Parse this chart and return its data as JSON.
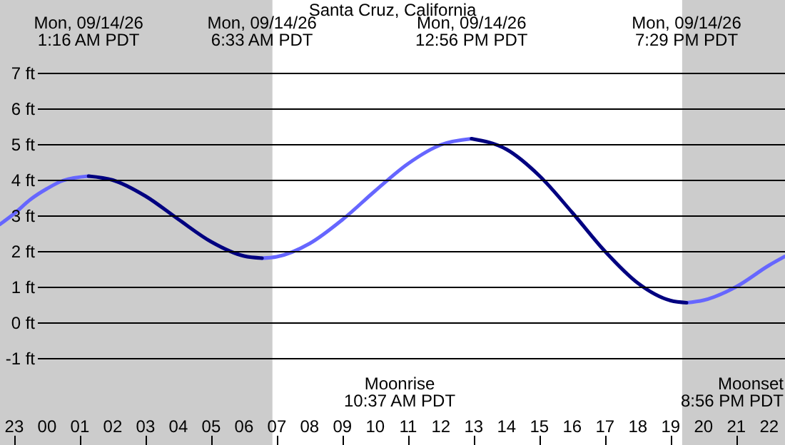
{
  "chart_data": {
    "type": "line",
    "title": "Santa Cruz, California",
    "x": [
      "--09-13T22:34",
      "--09-13T23:00",
      "--09-13T23:30",
      "--09-14T00:00",
      "--09-14T00:30",
      "--09-14T01:16",
      "--09-14T02:00",
      "--09-14T03:00",
      "--09-14T04:00",
      "--09-14T05:00",
      "--09-14T06:00",
      "--09-14T06:33",
      "--09-14T07:00",
      "--09-14T08:00",
      "--09-14T09:00",
      "--09-14T10:00",
      "--09-14T11:00",
      "--09-14T12:00",
      "--09-14T12:56",
      "--09-14T14:00",
      "--09-14T15:00",
      "--09-14T16:00",
      "--09-14T17:00",
      "--09-14T18:00",
      "--09-14T19:00",
      "--09-14T19:29",
      "--09-14T20:00",
      "--09-14T21:00",
      "--09-14T22:00",
      "--09-14T22:29"
    ],
    "series": [
      {
        "color": "#6666ff",
        "values": [
          2.75,
          3.05,
          3.45,
          3.75,
          3.98,
          4.1,
          null,
          null,
          null,
          null,
          null,
          1.8,
          1.84,
          2.21,
          2.88,
          3.69,
          4.45,
          4.98,
          5.15,
          null,
          null,
          null,
          null,
          null,
          null,
          0.55,
          0.62,
          1.0,
          1.6,
          1.85
        ]
      },
      {
        "color": "#000080",
        "values": [
          null,
          null,
          null,
          null,
          null,
          4.1,
          3.99,
          3.54,
          2.89,
          2.26,
          1.86,
          1.8,
          null,
          null,
          null,
          null,
          null,
          null,
          5.15,
          4.85,
          4.11,
          3.08,
          1.99,
          1.1,
          0.61,
          0.55,
          null,
          null,
          null,
          null
        ]
      }
    ],
    "xlim": [
      "--09-13T22:34",
      "--09-14T22:29"
    ],
    "xticks": [
      {
        "value": "--09-13T23:00",
        "label": "23"
      },
      {
        "value": "--09-14T00:00",
        "label": "00"
      },
      {
        "value": "--09-14T01:00",
        "label": "01"
      },
      {
        "value": "--09-14T02:00",
        "label": "02"
      },
      {
        "value": "--09-14T03:00",
        "label": "03"
      },
      {
        "value": "--09-14T04:00",
        "label": "04"
      },
      {
        "value": "--09-14T05:00",
        "label": "05"
      },
      {
        "value": "--09-14T06:00",
        "label": "06"
      },
      {
        "value": "--09-14T07:00",
        "label": "07"
      },
      {
        "value": "--09-14T08:00",
        "label": "08"
      },
      {
        "value": "--09-14T09:00",
        "label": "09"
      },
      {
        "value": "--09-14T10:00",
        "label": "10"
      },
      {
        "value": "--09-14T11:00",
        "label": "11"
      },
      {
        "value": "--09-14T12:00",
        "label": "12"
      },
      {
        "value": "--09-14T13:00",
        "label": "13"
      },
      {
        "value": "--09-14T14:00",
        "label": "14"
      },
      {
        "value": "--09-14T15:00",
        "label": "15"
      },
      {
        "value": "--09-14T16:00",
        "label": "16"
      },
      {
        "value": "--09-14T17:00",
        "label": "17"
      },
      {
        "value": "--09-14T18:00",
        "label": "18"
      },
      {
        "value": "--09-14T19:00",
        "label": "19"
      },
      {
        "value": "--09-14T20:00",
        "label": "20"
      },
      {
        "value": "--09-14T21:00",
        "label": "21"
      },
      {
        "value": "--09-14T22:00",
        "label": "22"
      }
    ],
    "ylim": [
      -3.44,
      9.04
    ],
    "yticks": [
      {
        "value": -1,
        "label": "-1 ft"
      },
      {
        "value": 0,
        "label": "0 ft"
      },
      {
        "value": 1,
        "label": "1 ft"
      },
      {
        "value": 2,
        "label": "2 ft"
      },
      {
        "value": 3,
        "label": "3 ft"
      },
      {
        "value": 4,
        "label": "4 ft"
      },
      {
        "value": 5,
        "label": "5 ft"
      },
      {
        "value": 6,
        "label": "6 ft"
      },
      {
        "value": 7,
        "label": "7 ft"
      }
    ],
    "grid": "y",
    "bands": [
      {
        "axis": "x",
        "from": "--09-13T22:34",
        "to": "--09-14T06:52",
        "color": "#cccccc"
      },
      {
        "axis": "x",
        "from": "--09-14T19:21",
        "to": "--09-14T22:29",
        "color": "#cccccc"
      }
    ],
    "annotations": [
      "Mon, 09/14/26\n1:16 AM PDT",
      "Mon, 09/14/26\n6:33 AM PDT",
      "Mon, 09/14/26\n12:56 PM PDT",
      "Mon, 09/14/26\n7:29 PM PDT",
      "Moonrise\n10:37 AM PDT",
      "Moonset\n8:56 PM PDT"
    ]
  }
}
